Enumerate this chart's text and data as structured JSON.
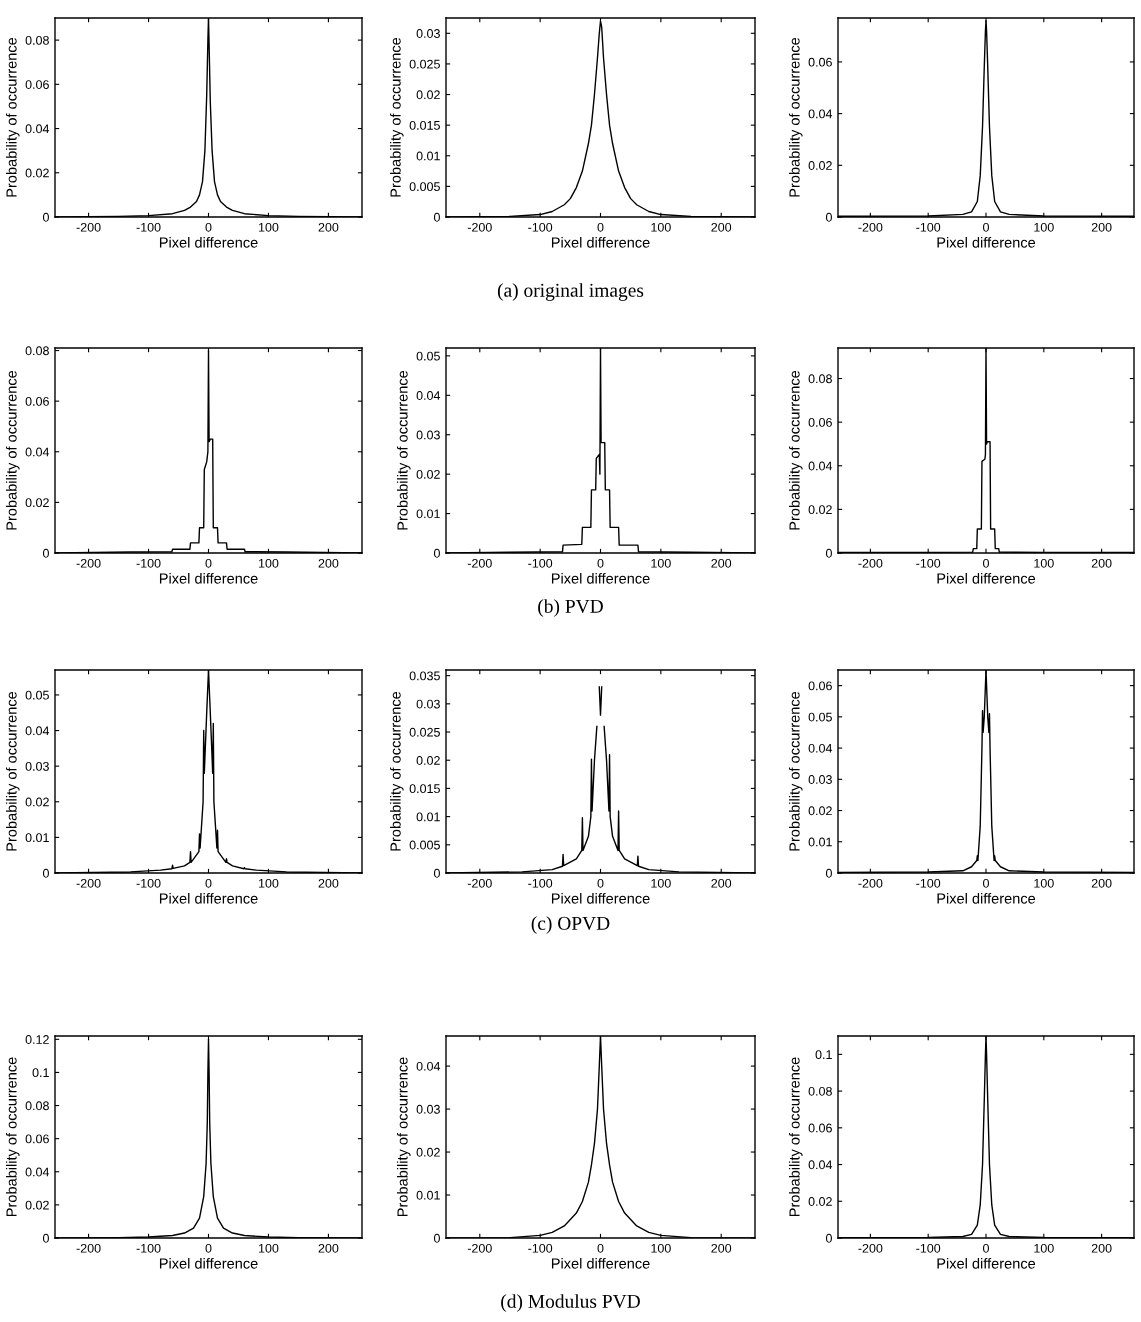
{
  "chart_data": [
    {
      "type": "line",
      "xlabel": "Pixel difference",
      "ylabel": "Probability of occurrence",
      "xlim": [
        -256,
        256
      ],
      "xticks": [
        -200,
        -100,
        0,
        100,
        200
      ],
      "ylim": [
        0,
        0.09
      ],
      "yticks": [
        0,
        0.02,
        0.04,
        0.06,
        0.08
      ],
      "series": [
        {
          "color": "#000000",
          "x": [
            -256,
            -150,
            -100,
            -60,
            -40,
            -30,
            -20,
            -15,
            -10,
            -6,
            -3,
            -1,
            0,
            1,
            3,
            6,
            10,
            15,
            20,
            30,
            40,
            60,
            100,
            150,
            256
          ],
          "values": [
            0,
            0.0003,
            0.0006,
            0.0015,
            0.003,
            0.0045,
            0.007,
            0.01,
            0.016,
            0.03,
            0.055,
            0.08,
            0.09,
            0.078,
            0.052,
            0.03,
            0.016,
            0.01,
            0.007,
            0.0045,
            0.003,
            0.0015,
            0.0006,
            0.0003,
            0
          ]
        }
      ]
    },
    {
      "type": "line",
      "xlabel": "Pixel difference",
      "ylabel": "Probability of occurrence",
      "xlim": [
        -256,
        256
      ],
      "xticks": [
        -200,
        -100,
        0,
        100,
        200
      ],
      "ylim": [
        0,
        0.0325
      ],
      "yticks": [
        0,
        0.005,
        0.01,
        0.015,
        0.02,
        0.025,
        0.03
      ],
      "annotations": [
        "(a) original images"
      ],
      "series": [
        {
          "color": "#000000",
          "x": [
            -256,
            -150,
            -100,
            -80,
            -60,
            -50,
            -40,
            -30,
            -20,
            -15,
            -10,
            -5,
            -2,
            0,
            2,
            5,
            10,
            15,
            20,
            30,
            40,
            50,
            60,
            80,
            100,
            150,
            256
          ],
          "values": [
            0,
            0.0001,
            0.0004,
            0.0009,
            0.002,
            0.003,
            0.0048,
            0.0075,
            0.012,
            0.015,
            0.02,
            0.026,
            0.03,
            0.032,
            0.031,
            0.026,
            0.02,
            0.015,
            0.012,
            0.0075,
            0.0048,
            0.003,
            0.002,
            0.0009,
            0.0004,
            0.0001,
            0
          ]
        }
      ]
    },
    {
      "type": "line",
      "xlabel": "Pixel difference",
      "ylabel": "Probability of occurrence",
      "xlim": [
        -256,
        256
      ],
      "xticks": [
        -200,
        -100,
        0,
        100,
        200
      ],
      "ylim": [
        0,
        0.077
      ],
      "yticks": [
        0,
        0.02,
        0.04,
        0.06
      ],
      "series": [
        {
          "color": "#000000",
          "x": [
            -256,
            -100,
            -40,
            -25,
            -15,
            -10,
            -6,
            -3,
            -1,
            0,
            1,
            3,
            6,
            10,
            15,
            25,
            40,
            100,
            256
          ],
          "values": [
            0.0003,
            0.0004,
            0.001,
            0.002,
            0.006,
            0.016,
            0.035,
            0.058,
            0.072,
            0.076,
            0.072,
            0.058,
            0.035,
            0.016,
            0.006,
            0.002,
            0.001,
            0.0004,
            0.0003
          ]
        }
      ]
    },
    {
      "type": "line",
      "xlabel": "Pixel difference",
      "ylabel": "Probability of occurrence",
      "xlim": [
        -256,
        256
      ],
      "xticks": [
        -200,
        -100,
        0,
        100,
        200
      ],
      "ylim": [
        0,
        0.081
      ],
      "yticks": [
        0,
        0.02,
        0.04,
        0.06,
        0.08
      ],
      "series": [
        {
          "color": "#000000",
          "x": [
            -256,
            -130,
            -61,
            -60,
            -31,
            -30,
            -16,
            -15,
            -8,
            -7,
            -3,
            -1,
            0,
            1,
            3,
            7,
            8,
            15,
            16,
            30,
            31,
            60,
            61,
            130,
            256
          ],
          "values": [
            0,
            0.0004,
            0.0005,
            0.0015,
            0.0015,
            0.004,
            0.004,
            0.01,
            0.01,
            0.033,
            0.036,
            0.04,
            0.08,
            0.044,
            0.045,
            0.045,
            0.01,
            0.01,
            0.004,
            0.004,
            0.0015,
            0.0015,
            0.0005,
            0.0004,
            0
          ]
        }
      ]
    },
    {
      "type": "line",
      "xlabel": "Pixel difference",
      "ylabel": "Probability of occurrence",
      "xlim": [
        -256,
        256
      ],
      "xticks": [
        -200,
        -100,
        0,
        100,
        200
      ],
      "ylim": [
        0,
        0.052
      ],
      "yticks": [
        0,
        0.01,
        0.02,
        0.03,
        0.04,
        0.05
      ],
      "annotations": [
        "(b) PVD"
      ],
      "series": [
        {
          "color": "#000000",
          "x": [
            -256,
            -150,
            -63,
            -62,
            -31,
            -30,
            -16,
            -15,
            -8,
            -7,
            -2,
            -1,
            0,
            1,
            2,
            7,
            8,
            15,
            16,
            30,
            31,
            62,
            63,
            150,
            256
          ],
          "values": [
            0,
            0.0002,
            0.0003,
            0.002,
            0.0022,
            0.0065,
            0.0065,
            0.016,
            0.016,
            0.024,
            0.025,
            0.02,
            0.052,
            0.028,
            0.028,
            0.028,
            0.016,
            0.016,
            0.0065,
            0.0065,
            0.002,
            0.002,
            0.0003,
            0.0002,
            0
          ]
        }
      ]
    },
    {
      "type": "line",
      "xlabel": "Pixel difference",
      "ylabel": "Probability of occurrence",
      "xlim": [
        -256,
        256
      ],
      "xticks": [
        -200,
        -100,
        0,
        100,
        200
      ],
      "ylim": [
        0,
        0.094
      ],
      "yticks": [
        0,
        0.02,
        0.04,
        0.06,
        0.08
      ],
      "series": [
        {
          "color": "#000000",
          "x": [
            -256,
            -100,
            -23,
            -22,
            -16,
            -15,
            -8,
            -7,
            -2,
            -1,
            0,
            1,
            2,
            7,
            8,
            15,
            16,
            22,
            23,
            100,
            256
          ],
          "values": [
            0.0002,
            0.0003,
            0.0004,
            0.002,
            0.002,
            0.011,
            0.011,
            0.042,
            0.043,
            0.045,
            0.094,
            0.05,
            0.051,
            0.051,
            0.011,
            0.011,
            0.002,
            0.002,
            0.0004,
            0.0003,
            0.0002
          ]
        }
      ]
    },
    {
      "type": "line",
      "xlabel": "Pixel difference",
      "ylabel": "Probability of occurrence",
      "xlim": [
        -256,
        256
      ],
      "xticks": [
        -200,
        -100,
        0,
        100,
        200
      ],
      "ylim": [
        0,
        0.057
      ],
      "yticks": [
        0,
        0.01,
        0.02,
        0.03,
        0.04,
        0.05
      ],
      "series": [
        {
          "color": "#000000",
          "x": [
            -256,
            -130,
            -80,
            -61,
            -60,
            -59,
            -40,
            -31,
            -30,
            -29,
            -16,
            -15,
            -14,
            -9,
            -8,
            -7,
            -3,
            0,
            3,
            7,
            8,
            9,
            14,
            15,
            16,
            29,
            30,
            31,
            40,
            59,
            60,
            61,
            80,
            130,
            256
          ],
          "values": [
            0,
            0.0003,
            0.0008,
            0.0012,
            0.0022,
            0.0013,
            0.002,
            0.003,
            0.006,
            0.003,
            0.006,
            0.011,
            0.007,
            0.02,
            0.04,
            0.028,
            0.045,
            0.057,
            0.045,
            0.028,
            0.042,
            0.02,
            0.007,
            0.012,
            0.006,
            0.003,
            0.004,
            0.003,
            0.002,
            0.0012,
            0.0015,
            0.0012,
            0.0008,
            0.0003,
            0
          ]
        }
      ]
    },
    {
      "type": "line",
      "xlabel": "Pixel difference",
      "ylabel": "Probability of occurrence",
      "xlim": [
        -256,
        256
      ],
      "xticks": [
        -200,
        -100,
        0,
        100,
        200
      ],
      "ylim": [
        0,
        0.036
      ],
      "yticks": [
        0,
        0.005,
        0.01,
        0.015,
        0.02,
        0.025,
        0.03,
        0.035
      ],
      "annotations": [
        "(c) OPVD"
      ],
      "series": [
        {
          "color": "#000000",
          "x": [
            -256,
            -130,
            -80,
            -63,
            -62,
            -61,
            -40,
            -31,
            -30,
            -29,
            -20,
            -16,
            -15,
            -14,
            -10,
            -6,
            -3,
            -2,
            0,
            2,
            3,
            6,
            10,
            14,
            15,
            16,
            20,
            29,
            30,
            31,
            40,
            61,
            62,
            63,
            80,
            130,
            256
          ],
          "values": [
            0,
            0.0002,
            0.0006,
            0.0012,
            0.0033,
            0.0013,
            0.0025,
            0.004,
            0.0098,
            0.004,
            0.0065,
            0.01,
            0.0202,
            0.011,
            0.02,
            0.026,
            null,
            0.033,
            0.028,
            0.033,
            null,
            0.026,
            0.02,
            0.011,
            0.021,
            0.01,
            0.0065,
            0.004,
            0.011,
            0.004,
            0.0025,
            0.0013,
            0.003,
            0.0012,
            0.0006,
            0.0002,
            0
          ]
        }
      ]
    },
    {
      "type": "line",
      "xlabel": "Pixel difference",
      "ylabel": "Probability of occurrence",
      "xlim": [
        -256,
        256
      ],
      "xticks": [
        -200,
        -100,
        0,
        100,
        200
      ],
      "ylim": [
        0,
        0.065
      ],
      "yticks": [
        0,
        0.01,
        0.02,
        0.03,
        0.04,
        0.05,
        0.06
      ],
      "series": [
        {
          "color": "#000000",
          "x": [
            -256,
            -100,
            -40,
            -25,
            -16,
            -15,
            -14,
            -10,
            -7,
            -6,
            -5,
            -3,
            0,
            3,
            5,
            6,
            7,
            10,
            14,
            15,
            16,
            25,
            40,
            100,
            256
          ],
          "values": [
            0.0002,
            0.0003,
            0.0007,
            0.002,
            0.004,
            0.0055,
            0.004,
            0.015,
            0.04,
            0.052,
            0.045,
            0.05,
            0.065,
            0.05,
            0.045,
            0.051,
            0.04,
            0.015,
            0.004,
            0.0055,
            0.004,
            0.002,
            0.0007,
            0.0003,
            0.0002
          ]
        }
      ]
    },
    {
      "type": "line",
      "xlabel": "Pixel difference",
      "ylabel": "Probability of occurrence",
      "xlim": [
        -256,
        256
      ],
      "xticks": [
        -200,
        -100,
        0,
        100,
        200
      ],
      "ylim": [
        0,
        0.122
      ],
      "yticks": [
        0,
        0.02,
        0.04,
        0.06,
        0.08,
        0.1,
        0.12
      ],
      "series": [
        {
          "color": "#000000",
          "x": [
            -256,
            -150,
            -100,
            -60,
            -40,
            -25,
            -15,
            -8,
            -4,
            -2,
            -1,
            0,
            1,
            2,
            4,
            8,
            15,
            25,
            40,
            60,
            100,
            150,
            256
          ],
          "values": [
            0,
            0.0002,
            0.0006,
            0.0015,
            0.003,
            0.006,
            0.012,
            0.025,
            0.045,
            0.07,
            0.1,
            0.12,
            0.1,
            0.07,
            0.045,
            0.025,
            0.012,
            0.006,
            0.003,
            0.0015,
            0.0006,
            0.0002,
            0
          ]
        }
      ]
    },
    {
      "type": "line",
      "xlabel": "Pixel difference",
      "ylabel": "Probability of occurrence",
      "xlim": [
        -256,
        256
      ],
      "xticks": [
        -200,
        -100,
        0,
        100,
        200
      ],
      "ylim": [
        0,
        0.047
      ],
      "yticks": [
        0,
        0.01,
        0.02,
        0.03,
        0.04
      ],
      "annotations": [
        "(d) Modulus PVD"
      ],
      "series": [
        {
          "color": "#000000",
          "x": [
            -256,
            -150,
            -100,
            -80,
            -60,
            -40,
            -30,
            -20,
            -15,
            -10,
            -5,
            -2,
            0,
            2,
            5,
            10,
            15,
            20,
            30,
            40,
            60,
            80,
            100,
            150,
            256
          ],
          "values": [
            0,
            0.0001,
            0.0006,
            0.0013,
            0.0028,
            0.0058,
            0.0085,
            0.013,
            0.017,
            0.022,
            0.03,
            0.04,
            0.047,
            0.04,
            0.03,
            0.022,
            0.017,
            0.013,
            0.0085,
            0.0058,
            0.0028,
            0.0013,
            0.0006,
            0.0001,
            0
          ]
        }
      ]
    },
    {
      "type": "line",
      "xlabel": "Pixel difference",
      "ylabel": "Probability of occurrence",
      "xlim": [
        -256,
        256
      ],
      "xticks": [
        -200,
        -100,
        0,
        100,
        200
      ],
      "ylim": [
        0,
        0.11
      ],
      "yticks": [
        0,
        0.02,
        0.04,
        0.06,
        0.08,
        0.1
      ],
      "series": [
        {
          "color": "#000000",
          "x": [
            -256,
            -100,
            -40,
            -25,
            -15,
            -10,
            -6,
            -3,
            -1,
            0,
            1,
            3,
            6,
            10,
            15,
            25,
            40,
            100,
            256
          ],
          "values": [
            0.0002,
            0.0003,
            0.0008,
            0.002,
            0.007,
            0.018,
            0.04,
            0.075,
            0.1,
            0.11,
            0.1,
            0.075,
            0.04,
            0.018,
            0.007,
            0.002,
            0.0008,
            0.0003,
            0.0002
          ]
        }
      ]
    }
  ]
}
